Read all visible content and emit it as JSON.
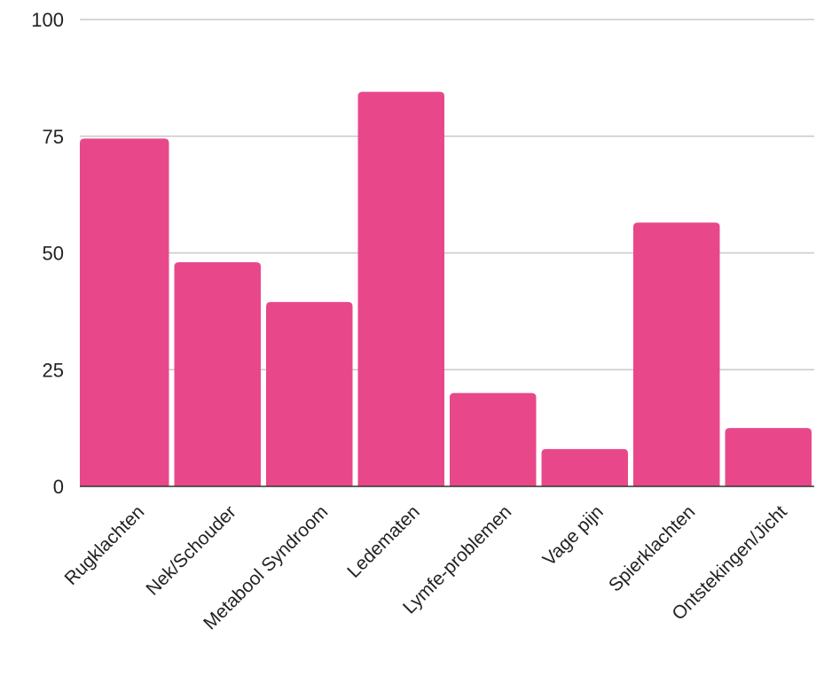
{
  "chart_data": {
    "type": "bar",
    "title": "",
    "xlabel": "",
    "ylabel": "",
    "categories": [
      "Rugklachten",
      "Nek/Schouder",
      "Metabool Syndroom",
      "Ledematen",
      "Lymfe-problemen",
      "Vage pijn",
      "Spierklachten",
      "Ontstekingen/Jicht"
    ],
    "values": [
      74.5,
      48,
      39.5,
      84.5,
      20,
      8,
      56.5,
      12.5
    ],
    "ylim": [
      0,
      100
    ],
    "yticks": [
      0,
      25,
      50,
      75,
      100
    ],
    "grid": true,
    "colors": {
      "bar": "#e8488a",
      "grid": "#c8c8c8",
      "axis": "#333333",
      "text": "#222222"
    }
  }
}
